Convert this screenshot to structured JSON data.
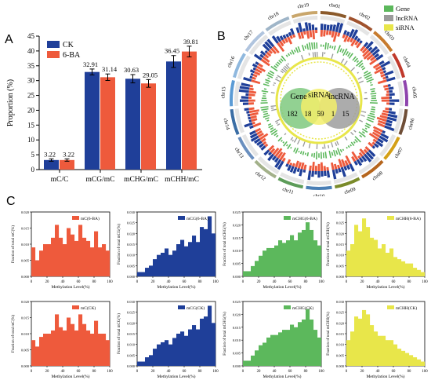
{
  "panels": {
    "a": "A",
    "b": "B",
    "c": "C"
  },
  "colors": {
    "ck": "#1f3f99",
    "ba": "#ee5a3c",
    "gene": "#5cb85c",
    "lncrna": "#9b9b9b",
    "sirna": "#e8e64a"
  },
  "chart_data": [
    {
      "type": "bar",
      "panel": "A",
      "categories": [
        "mC/C",
        "mCG/mC",
        "mCHG/mC",
        "mCHH/mC"
      ],
      "series": [
        {
          "name": "CK",
          "values": [
            3.22,
            32.91,
            30.63,
            36.45
          ],
          "errors": [
            0.4,
            1.0,
            1.4,
            2.0
          ]
        },
        {
          "name": "6-BA",
          "values": [
            3.22,
            31.14,
            29.05,
            39.81
          ],
          "errors": [
            0.4,
            1.1,
            1.3,
            1.8
          ]
        }
      ],
      "value_labels": [
        [
          "3.22",
          "32.91",
          "30.63",
          "36.45"
        ],
        [
          "3.22",
          "31.14",
          "29.05",
          "39.81"
        ]
      ],
      "ylabel": "Proportion (%)",
      "ylim": [
        0,
        45
      ],
      "yticks": [
        "0",
        "5",
        "10",
        "15",
        "20",
        "25",
        "30",
        "35",
        "40",
        "45"
      ],
      "legend": "top-left"
    },
    {
      "type": "circos",
      "panel": "B",
      "chromosomes": [
        "chr01",
        "chr02",
        "chr03",
        "chr04",
        "chr05",
        "chr06",
        "chr07",
        "chr08",
        "chr09",
        "chr10",
        "chr11",
        "chr12",
        "chr13",
        "chr14",
        "chr15",
        "chr16",
        "chr17",
        "chr18",
        "chr19"
      ],
      "legend": [
        "Gene",
        "lncRNA",
        "siRNA"
      ],
      "venn": {
        "sets": [
          "Gene",
          "siRNA",
          "lncRNA"
        ],
        "counts": [
          "182",
          "18",
          "59",
          "1",
          "15"
        ]
      }
    },
    {
      "type": "histograms",
      "panel": "C",
      "xlabel": "Methylation Level(%)",
      "xticks": [
        "0",
        "20",
        "40",
        "60",
        "80",
        "100"
      ],
      "plots": [
        {
          "name": "mC(6-BA)",
          "ylabel": "Fraction of total mC(%)",
          "yticks": [
            "0.000",
            "0.005",
            "0.010",
            "0.015",
            "0.020"
          ],
          "ymax": 0.02,
          "color": "#ee5a3c",
          "values": [
            0.009,
            0.005,
            0.008,
            0.01,
            0.01,
            0.012,
            0.016,
            0.012,
            0.01,
            0.015,
            0.013,
            0.011,
            0.016,
            0.012,
            0.011,
            0.009,
            0.014,
            0.009,
            0.01,
            0.008
          ]
        },
        {
          "name": "mCG(6-BA)",
          "ylabel": "Fraction of total mCG(%)",
          "yticks": [
            "0.000",
            "0.005",
            "0.010",
            "0.015",
            "0.020",
            "0.025",
            "0.030"
          ],
          "ymax": 0.03,
          "color": "#1f3f99",
          "values": [
            0.002,
            0.002,
            0.004,
            0.005,
            0.008,
            0.01,
            0.011,
            0.013,
            0.01,
            0.012,
            0.015,
            0.017,
            0.014,
            0.016,
            0.019,
            0.016,
            0.023,
            0.022,
            0.028,
            0.02
          ]
        },
        {
          "name": "mCHG(6-BA)",
          "ylabel": "Fraction of total mCHG(%)",
          "yticks": [
            "0.000",
            "0.005",
            "0.010",
            "0.015",
            "0.020",
            "0.025"
          ],
          "ymax": 0.025,
          "color": "#5cb85c",
          "values": [
            0.002,
            0.002,
            0.004,
            0.006,
            0.008,
            0.01,
            0.011,
            0.011,
            0.012,
            0.014,
            0.013,
            0.014,
            0.016,
            0.014,
            0.017,
            0.018,
            0.021,
            0.018,
            0.014,
            0.012
          ]
        },
        {
          "name": "mCHH(6-BA)",
          "ylabel": "Fraction of total mCHH(%)",
          "yticks": [
            "0.000",
            "0.005",
            "0.010",
            "0.015",
            "0.020",
            "0.025",
            "0.030"
          ],
          "ymax": 0.03,
          "color": "#e8e64a",
          "values": [
            0.012,
            0.015,
            0.024,
            0.021,
            0.027,
            0.023,
            0.018,
            0.017,
            0.013,
            0.015,
            0.011,
            0.013,
            0.009,
            0.008,
            0.007,
            0.006,
            0.006,
            0.004,
            0.003,
            0.002
          ]
        },
        {
          "name": "mC(CK)",
          "ylabel": "Fraction of total mC(%)",
          "yticks": [
            "0.000",
            "0.005",
            "0.010",
            "0.015",
            "0.020"
          ],
          "ymax": 0.02,
          "color": "#ee5a3c",
          "values": [
            0.008,
            0.006,
            0.009,
            0.01,
            0.01,
            0.011,
            0.016,
            0.012,
            0.011,
            0.015,
            0.013,
            0.011,
            0.016,
            0.013,
            0.011,
            0.01,
            0.014,
            0.01,
            0.01,
            0.008
          ]
        },
        {
          "name": "mCG(CK)",
          "ylabel": "Fraction of total mCG(%)",
          "yticks": [
            "0.000",
            "0.005",
            "0.010",
            "0.015",
            "0.020",
            "0.025",
            "0.030"
          ],
          "ymax": 0.03,
          "color": "#1f3f99",
          "values": [
            0.002,
            0.002,
            0.004,
            0.005,
            0.008,
            0.01,
            0.011,
            0.012,
            0.01,
            0.013,
            0.015,
            0.016,
            0.014,
            0.017,
            0.019,
            0.017,
            0.022,
            0.023,
            0.028,
            0.02
          ]
        },
        {
          "name": "mCHG(CK)",
          "ylabel": "Fraction of total mCHG(%)",
          "yticks": [
            "0.000",
            "0.005",
            "0.010",
            "0.015",
            "0.020",
            "0.025"
          ],
          "ymax": 0.025,
          "color": "#5cb85c",
          "values": [
            0.002,
            0.002,
            0.004,
            0.006,
            0.008,
            0.009,
            0.011,
            0.012,
            0.012,
            0.013,
            0.014,
            0.014,
            0.016,
            0.015,
            0.017,
            0.018,
            0.022,
            0.018,
            0.014,
            0.011
          ]
        },
        {
          "name": "mCHH(CK)",
          "ylabel": "Fraction of total mCHH(%)",
          "yticks": [
            "0.000",
            "0.005",
            "0.010",
            "0.015",
            "0.020",
            "0.025",
            "0.030"
          ],
          "ymax": 0.03,
          "color": "#e8e64a",
          "values": [
            0.012,
            0.016,
            0.023,
            0.022,
            0.026,
            0.024,
            0.019,
            0.016,
            0.014,
            0.014,
            0.012,
            0.012,
            0.01,
            0.008,
            0.007,
            0.006,
            0.005,
            0.004,
            0.003,
            0.002
          ]
        }
      ]
    }
  ]
}
